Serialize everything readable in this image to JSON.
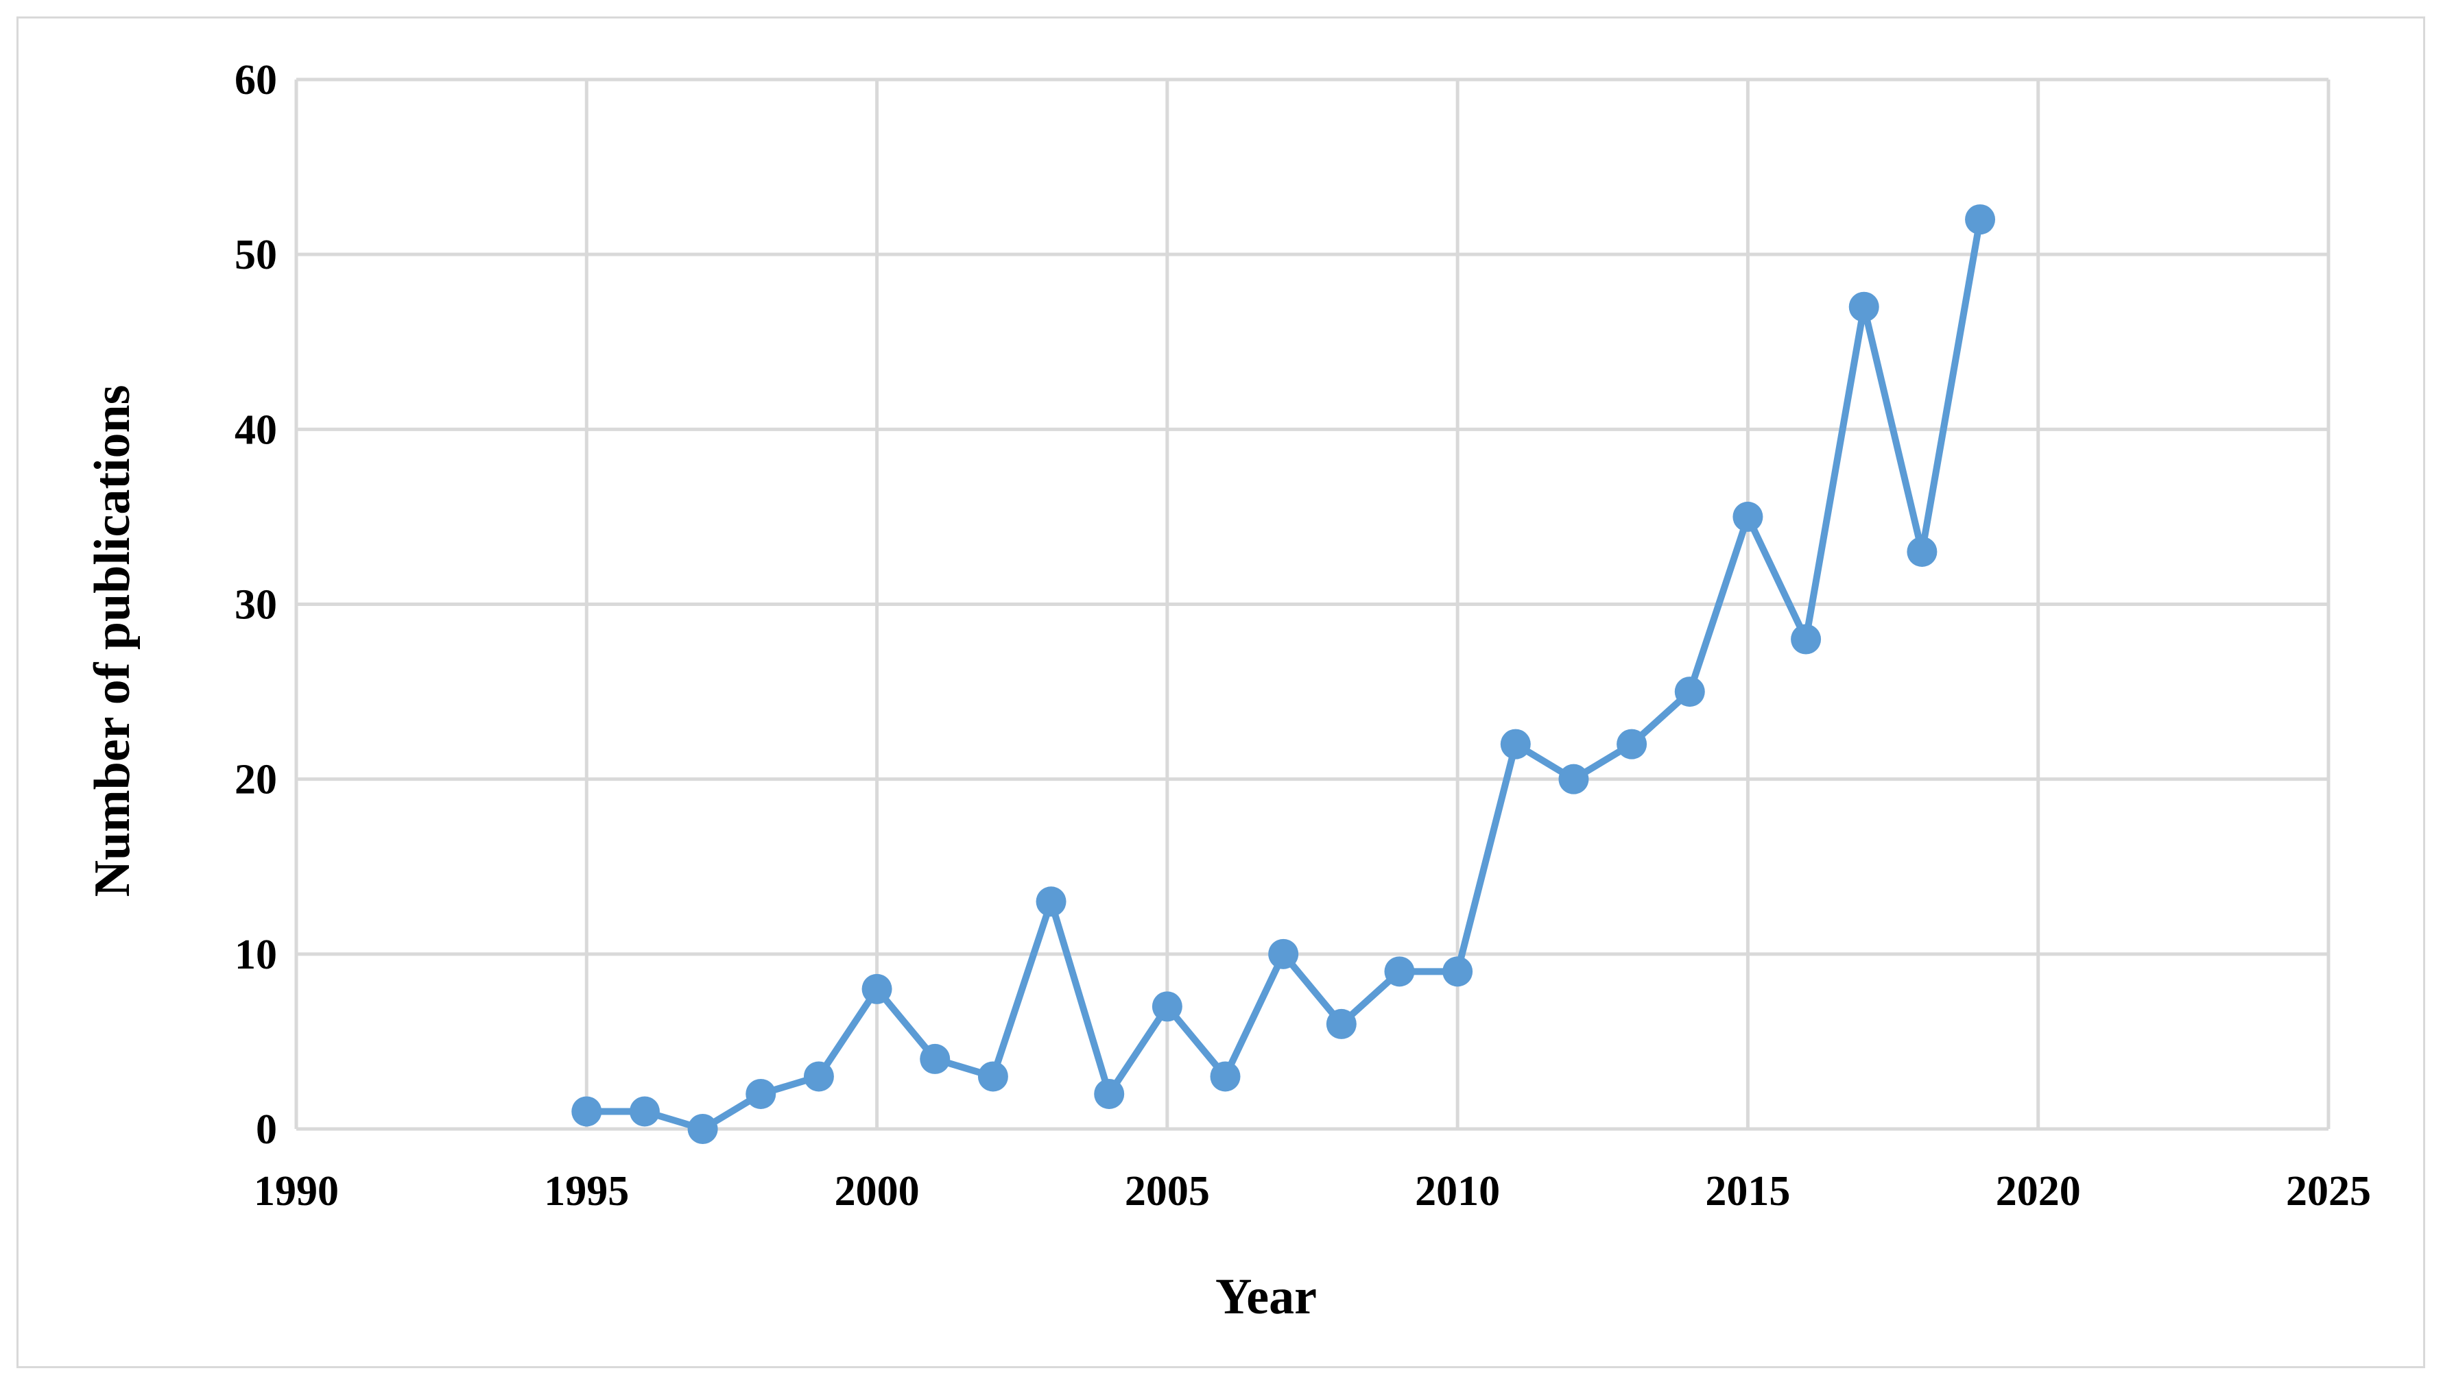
{
  "chart_data": {
    "type": "scatter",
    "title": "",
    "xlabel": "Year",
    "ylabel": "Number of publications",
    "xlim": [
      1990,
      2025
    ],
    "ylim": [
      0,
      60
    ],
    "x_ticks": [
      1990,
      1995,
      2000,
      2005,
      2010,
      2015,
      2020,
      2025
    ],
    "y_ticks": [
      0,
      10,
      20,
      30,
      40,
      50,
      60
    ],
    "grid": true,
    "legend": "none",
    "series_color": "#5b9bd5",
    "grid_color": "#d9d9d9",
    "series": [
      {
        "x": [
          1995,
          1996,
          1997,
          1998,
          1999,
          2000,
          2001,
          2002,
          2003,
          2004,
          2005,
          2006,
          2007,
          2008,
          2009,
          2010,
          2011,
          2012,
          2013,
          2014,
          2015,
          2016,
          2017,
          2018,
          2019
        ],
        "y": [
          1,
          1,
          0,
          2,
          3,
          8,
          4,
          3,
          13,
          2,
          7,
          3,
          10,
          6,
          9,
          9,
          22,
          20,
          22,
          25,
          35,
          28,
          47,
          33,
          52
        ]
      }
    ]
  }
}
